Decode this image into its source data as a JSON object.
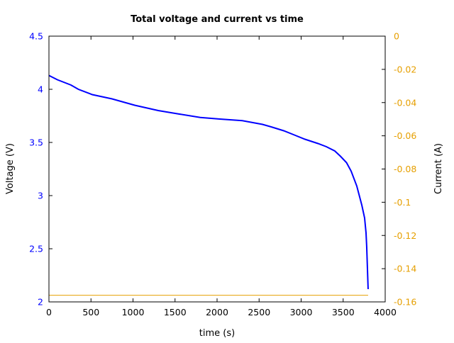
{
  "chart_data": {
    "type": "line",
    "title": "Total voltage and current vs time",
    "xlabel": "time (s)",
    "ylabel": "Voltage (V)",
    "y2label": "Current (A)",
    "xlim": [
      0,
      4000
    ],
    "ylim": [
      2,
      4.5
    ],
    "y2lim": [
      -0.16,
      0
    ],
    "xticks": [
      "0",
      "500",
      "1000",
      "1500",
      "2000",
      "2500",
      "3000",
      "3500",
      "4000"
    ],
    "yticks": [
      "2",
      "2.5",
      "3",
      "3.5",
      "4",
      "4.5"
    ],
    "y2ticks": [
      "-0.16",
      "-0.14",
      "-0.12",
      "-0.1",
      "-0.08",
      "-0.06",
      "-0.04",
      "-0.02",
      "0"
    ],
    "grid": false,
    "colors": {
      "voltage": "#0000ff",
      "current": "#e69f00",
      "left_axis": "#0000ff",
      "right_axis": "#e69f00"
    },
    "series": [
      {
        "axis": "left",
        "x": [
          0,
          100,
          262,
          350,
          515,
          750,
          1020,
          1300,
          1527,
          1800,
          2034,
          2300,
          2540,
          2650,
          2793,
          2920,
          3046,
          3200,
          3300,
          3400,
          3468,
          3540,
          3595,
          3662,
          3722,
          3755,
          3772,
          3780,
          3797
        ],
        "values": [
          4.13,
          4.09,
          4.04,
          4.0,
          3.95,
          3.91,
          3.85,
          3.8,
          3.77,
          3.735,
          3.72,
          3.705,
          3.67,
          3.645,
          3.61,
          3.57,
          3.53,
          3.49,
          3.46,
          3.42,
          3.37,
          3.31,
          3.23,
          3.09,
          2.91,
          2.79,
          2.65,
          2.52,
          2.12
        ]
      },
      {
        "axis": "right",
        "x": [
          0,
          3797
        ],
        "values": [
          -0.156,
          -0.156
        ]
      }
    ]
  }
}
